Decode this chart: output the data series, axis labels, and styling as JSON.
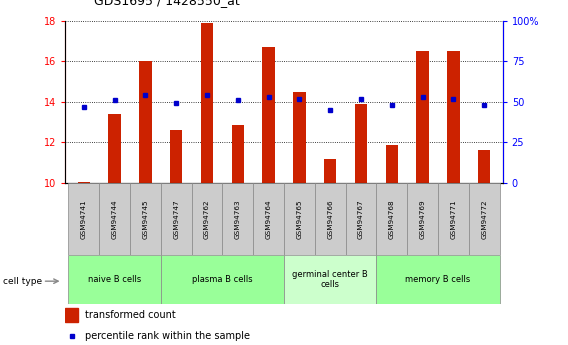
{
  "title": "GDS1695 / 1428550_at",
  "samples": [
    "GSM94741",
    "GSM94744",
    "GSM94745",
    "GSM94747",
    "GSM94762",
    "GSM94763",
    "GSM94764",
    "GSM94765",
    "GSM94766",
    "GSM94767",
    "GSM94768",
    "GSM94769",
    "GSM94771",
    "GSM94772"
  ],
  "transformed_count": [
    10.05,
    13.4,
    16.0,
    12.6,
    17.9,
    12.85,
    16.7,
    14.5,
    11.2,
    13.9,
    11.85,
    16.5,
    16.5,
    11.6
  ],
  "percentile_rank": [
    47,
    51,
    54,
    49,
    54,
    51,
    53,
    52,
    45,
    52,
    48,
    53,
    52,
    48
  ],
  "ylim_left": [
    10,
    18
  ],
  "ylim_right": [
    0,
    100
  ],
  "yticks_left": [
    10,
    12,
    14,
    16,
    18
  ],
  "yticks_right": [
    0,
    25,
    50,
    75,
    100
  ],
  "ytick_labels_right": [
    "0",
    "25",
    "50",
    "75",
    "100%"
  ],
  "bar_color": "#cc2200",
  "dot_color": "#0000cc",
  "cell_groups": [
    {
      "label": "naive B cells",
      "start": 0,
      "end": 3,
      "color": "#99ff99"
    },
    {
      "label": "plasma B cells",
      "start": 3,
      "end": 7,
      "color": "#99ff99"
    },
    {
      "label": "germinal center B\ncells",
      "start": 7,
      "end": 10,
      "color": "#ccffcc"
    },
    {
      "label": "memory B cells",
      "start": 10,
      "end": 14,
      "color": "#99ff99"
    }
  ],
  "legend_bar_label": "transformed count",
  "legend_dot_label": "percentile rank within the sample",
  "cell_type_label": "cell type",
  "bar_width": 0.4
}
